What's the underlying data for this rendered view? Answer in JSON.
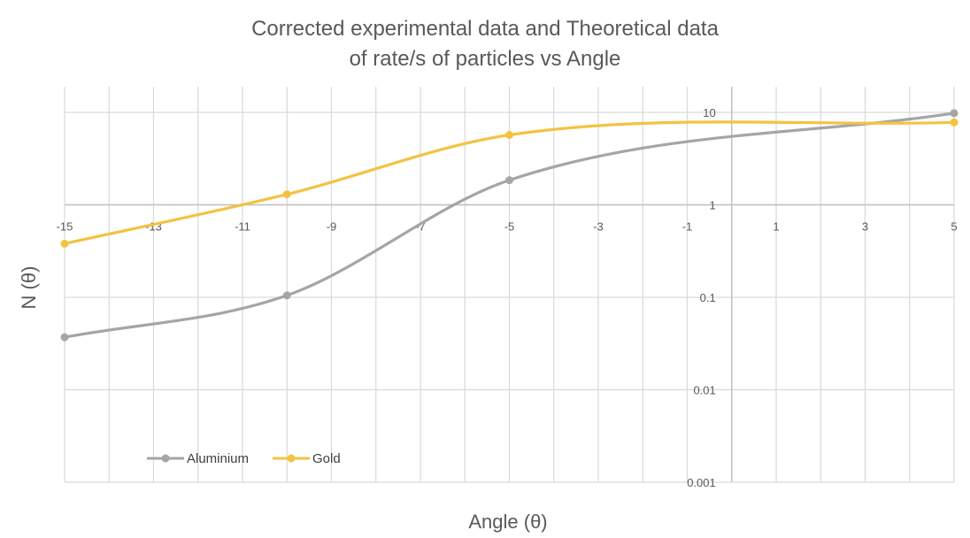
{
  "chart_data": {
    "type": "line",
    "title": [
      "Corrected experimental data and Theoretical data",
      "of rate/s of particles vs Angle"
    ],
    "xlabel": "Angle (θ)",
    "ylabel": "N (θ)",
    "xlim": [
      -15,
      5
    ],
    "x_ticks": [
      "-15",
      "-13",
      "-11",
      "-9",
      "-7",
      "-5",
      "-3",
      "-1",
      "1",
      "3",
      "5"
    ],
    "y_scale": "log",
    "ylim": [
      0.001,
      20
    ],
    "y_ticks": [
      "10",
      "1",
      "0.1",
      "0.01",
      "0.001"
    ],
    "grid": true,
    "legend_position": "bottom-left",
    "series": [
      {
        "name": "Aluminium",
        "color": "#a5a5a5",
        "points": [
          [
            -15,
            0.037
          ],
          [
            -10,
            0.105
          ],
          [
            -5,
            1.85
          ],
          [
            5,
            9.8
          ]
        ]
      },
      {
        "name": "Gold",
        "color": "#f4c243",
        "points": [
          [
            -15,
            0.38
          ],
          [
            -10,
            1.3
          ],
          [
            -5,
            5.7
          ],
          [
            5,
            7.8
          ]
        ]
      }
    ]
  }
}
